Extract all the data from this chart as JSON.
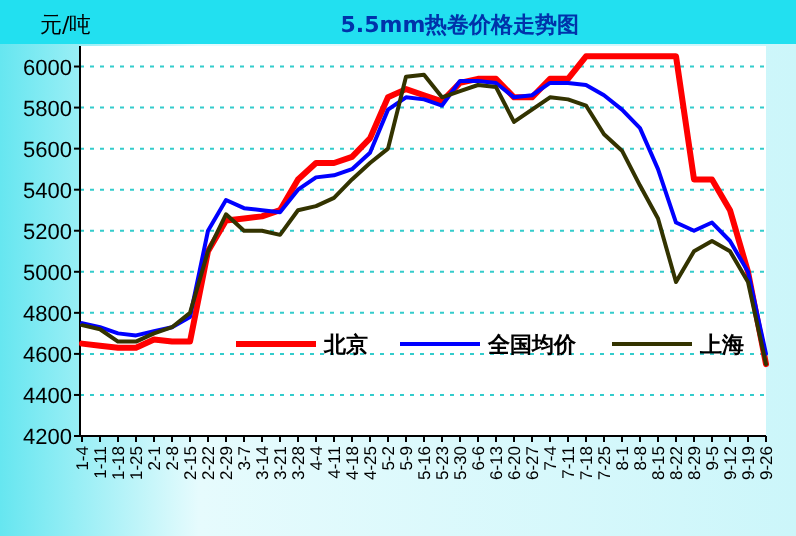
{
  "chart_data": {
    "type": "line",
    "title": "5.5mm热卷价格走势图",
    "ylabel": "元/吨",
    "categories": [
      "1-4",
      "1-11",
      "1-18",
      "1-25",
      "2-1",
      "2-8",
      "2-15",
      "2-22",
      "2-29",
      "3-7",
      "3-14",
      "3-21",
      "3-28",
      "4-4",
      "4-11",
      "4-18",
      "4-25",
      "5-2",
      "5-9",
      "5-16",
      "5-23",
      "5-30",
      "6-6",
      "6-13",
      "6-20",
      "6-27",
      "7-4",
      "7-11",
      "7-18",
      "7-25",
      "8-1",
      "8-8",
      "8-15",
      "8-22",
      "8-29",
      "9-5",
      "9-12",
      "9-19",
      "9-26"
    ],
    "series": [
      {
        "name": "北京",
        "color": "#ff0000",
        "values": [
          4650,
          4640,
          4630,
          4630,
          4670,
          4660,
          4660,
          5100,
          5250,
          5260,
          5270,
          5300,
          5450,
          5530,
          5530,
          5560,
          5650,
          5850,
          5890,
          5860,
          5830,
          5920,
          5940,
          5940,
          5850,
          5850,
          5940,
          5940,
          6050,
          6050,
          6050,
          6050,
          6050,
          6050,
          5450,
          5450,
          5300,
          5000,
          4550
        ]
      },
      {
        "name": "全国均价",
        "color": "#0000ff",
        "values": [
          4750,
          4730,
          4700,
          4690,
          4710,
          4730,
          4780,
          5200,
          5350,
          5310,
          5300,
          5290,
          5400,
          5460,
          5470,
          5500,
          5580,
          5790,
          5850,
          5840,
          5810,
          5930,
          5930,
          5920,
          5850,
          5860,
          5920,
          5920,
          5910,
          5860,
          5790,
          5700,
          5500,
          5240,
          5200,
          5240,
          5150,
          5000,
          4600
        ]
      },
      {
        "name": "上海",
        "color": "#333300",
        "values": [
          4740,
          4720,
          4660,
          4660,
          4700,
          4730,
          4800,
          5100,
          5280,
          5200,
          5200,
          5180,
          5300,
          5320,
          5360,
          5450,
          5530,
          5600,
          5950,
          5960,
          5850,
          5880,
          5910,
          5900,
          5730,
          5790,
          5850,
          5840,
          5810,
          5670,
          5590,
          5420,
          5260,
          4950,
          5100,
          5150,
          5100,
          4950,
          4550
        ]
      }
    ],
    "ylim": [
      4200,
      6100
    ],
    "yticks": [
      4200,
      4400,
      4600,
      4800,
      5000,
      5200,
      5400,
      5600,
      5800,
      6000
    ],
    "grid": "y",
    "legend": "bottom",
    "marker": "none",
    "line_style": "solid"
  }
}
